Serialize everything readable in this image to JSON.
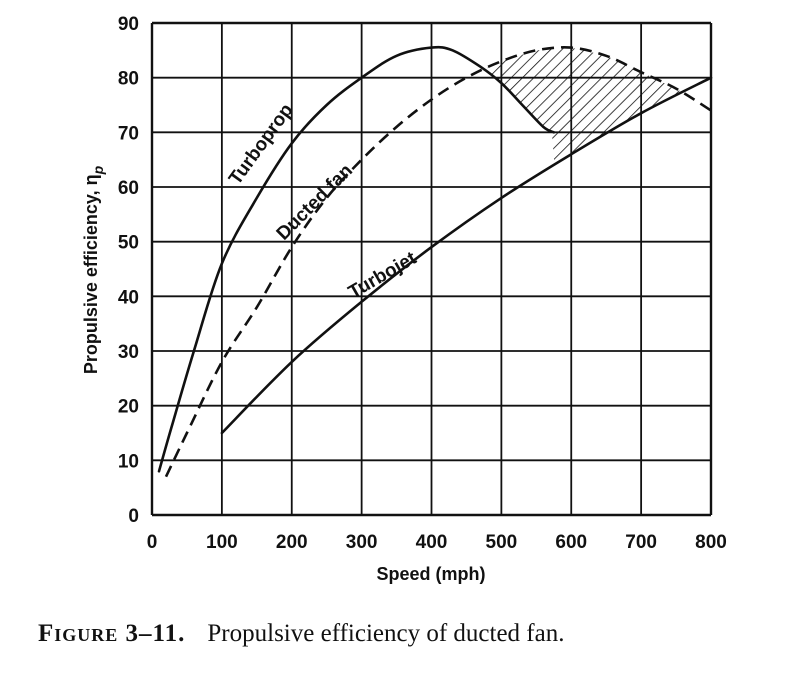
{
  "caption": {
    "figure": "Figure 3–11.",
    "text": "Propulsive efficiency of ducted fan."
  },
  "chart_data": {
    "type": "line",
    "xlabel": "Speed (mph)",
    "ylabel": "Propulsive efficiency, η",
    "ylabel_subscript": "p",
    "xlim": [
      0,
      800
    ],
    "ylim": [
      0,
      90
    ],
    "x_ticks": [
      0,
      100,
      200,
      300,
      400,
      500,
      600,
      700,
      800
    ],
    "y_ticks": [
      0,
      10,
      20,
      30,
      40,
      50,
      60,
      70,
      80,
      90
    ],
    "grid": true,
    "series": [
      {
        "name": "Turboprop",
        "style": "solid",
        "points": [
          [
            10,
            8
          ],
          [
            30,
            17
          ],
          [
            60,
            30
          ],
          [
            100,
            46
          ],
          [
            150,
            58
          ],
          [
            200,
            68
          ],
          [
            250,
            75
          ],
          [
            300,
            80
          ],
          [
            350,
            84
          ],
          [
            400,
            85.5
          ],
          [
            430,
            85
          ],
          [
            470,
            82
          ],
          [
            500,
            79
          ],
          [
            530,
            75
          ],
          [
            560,
            71
          ],
          [
            575,
            70
          ]
        ]
      },
      {
        "name": "Ducted fan",
        "style": "dashed",
        "points": [
          [
            20,
            7
          ],
          [
            50,
            15
          ],
          [
            100,
            28
          ],
          [
            150,
            38
          ],
          [
            200,
            49
          ],
          [
            250,
            58
          ],
          [
            300,
            65
          ],
          [
            350,
            71
          ],
          [
            400,
            76
          ],
          [
            450,
            80
          ],
          [
            500,
            83
          ],
          [
            550,
            85
          ],
          [
            600,
            85.5
          ],
          [
            650,
            84
          ],
          [
            700,
            81
          ],
          [
            750,
            78
          ],
          [
            800,
            74
          ]
        ]
      },
      {
        "name": "Turbojet",
        "style": "solid",
        "points": [
          [
            100,
            15
          ],
          [
            200,
            28
          ],
          [
            300,
            39
          ],
          [
            400,
            49
          ],
          [
            500,
            58
          ],
          [
            600,
            66
          ],
          [
            700,
            73.5
          ],
          [
            800,
            80
          ]
        ]
      }
    ],
    "shaded_region": {
      "description_series": [
        "Ducted fan",
        "Turboprop",
        "Turbojet"
      ],
      "fill": "hatched"
    },
    "colors": {
      "line": "#111111",
      "grid": "#111111",
      "background": "#ffffff"
    }
  }
}
